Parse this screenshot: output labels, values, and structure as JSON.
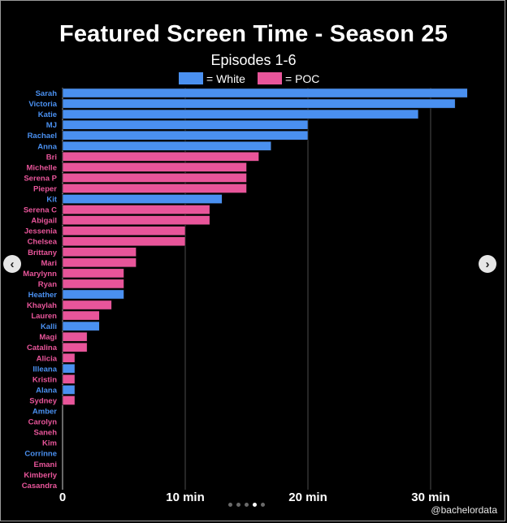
{
  "chart_data": {
    "type": "bar",
    "orientation": "horizontal",
    "title": "Featured Screen Time - Season 25",
    "subtitle": "Episodes 1-6",
    "legend": [
      {
        "label": "= White",
        "color": "#4a90f0"
      },
      {
        "label": "= POC",
        "color": "#e8559a"
      }
    ],
    "x_ticks": [
      {
        "value": 0,
        "label": "0"
      },
      {
        "value": 10,
        "label": "10 min"
      },
      {
        "value": 20,
        "label": "20 min"
      },
      {
        "value": 30,
        "label": "30 min"
      }
    ],
    "xlim": [
      0,
      34
    ],
    "grid": true,
    "colors": {
      "White": "#4a90f0",
      "POC": "#e8559a",
      "grid": "#3a3a3a"
    },
    "bars": [
      {
        "name": "Sarah",
        "value": 33,
        "group": "White"
      },
      {
        "name": "Victoria",
        "value": 32,
        "group": "White"
      },
      {
        "name": "Katie",
        "value": 29,
        "group": "White"
      },
      {
        "name": "MJ",
        "value": 20,
        "group": "White"
      },
      {
        "name": "Rachael",
        "value": 20,
        "group": "White"
      },
      {
        "name": "Anna",
        "value": 17,
        "group": "White"
      },
      {
        "name": "Bri",
        "value": 16,
        "group": "POC"
      },
      {
        "name": "Michelle",
        "value": 15,
        "group": "POC"
      },
      {
        "name": "Serena P",
        "value": 15,
        "group": "POC"
      },
      {
        "name": "Pieper",
        "value": 15,
        "group": "POC"
      },
      {
        "name": "Kit",
        "value": 13,
        "group": "White"
      },
      {
        "name": "Serena C",
        "value": 12,
        "group": "POC"
      },
      {
        "name": "Abigail",
        "value": 12,
        "group": "POC"
      },
      {
        "name": "Jessenia",
        "value": 10,
        "group": "POC"
      },
      {
        "name": "Chelsea",
        "value": 10,
        "group": "POC"
      },
      {
        "name": "Brittany",
        "value": 6,
        "group": "POC"
      },
      {
        "name": "Mari",
        "value": 6,
        "group": "POC"
      },
      {
        "name": "Marylynn",
        "value": 5,
        "group": "POC"
      },
      {
        "name": "Ryan",
        "value": 5,
        "group": "POC"
      },
      {
        "name": "Heather",
        "value": 5,
        "group": "White"
      },
      {
        "name": "Khaylah",
        "value": 4,
        "group": "POC"
      },
      {
        "name": "Lauren",
        "value": 3,
        "group": "POC"
      },
      {
        "name": "Kalli",
        "value": 3,
        "group": "White"
      },
      {
        "name": "Magi",
        "value": 2,
        "group": "POC"
      },
      {
        "name": "Catalina",
        "value": 2,
        "group": "POC"
      },
      {
        "name": "Alicia",
        "value": 1,
        "group": "POC"
      },
      {
        "name": "Illeana",
        "value": 1,
        "group": "White"
      },
      {
        "name": "Kristin",
        "value": 1,
        "group": "POC"
      },
      {
        "name": "Alana",
        "value": 1,
        "group": "White"
      },
      {
        "name": "Sydney",
        "value": 1,
        "group": "POC"
      },
      {
        "name": "Amber",
        "value": 0,
        "group": "White"
      },
      {
        "name": "Carolyn",
        "value": 0,
        "group": "POC"
      },
      {
        "name": "Saneh",
        "value": 0,
        "group": "POC"
      },
      {
        "name": "Kim",
        "value": 0,
        "group": "POC"
      },
      {
        "name": "Corrinne",
        "value": 0,
        "group": "White"
      },
      {
        "name": "Emani",
        "value": 0,
        "group": "POC"
      },
      {
        "name": "Kimberly",
        "value": 0,
        "group": "POC"
      },
      {
        "name": "Casandra",
        "value": 0,
        "group": "POC"
      }
    ]
  },
  "carousel": {
    "prev_icon": "‹",
    "next_icon": "›",
    "page_count": 5,
    "active_page": 4
  },
  "credit": "@bachelordata"
}
